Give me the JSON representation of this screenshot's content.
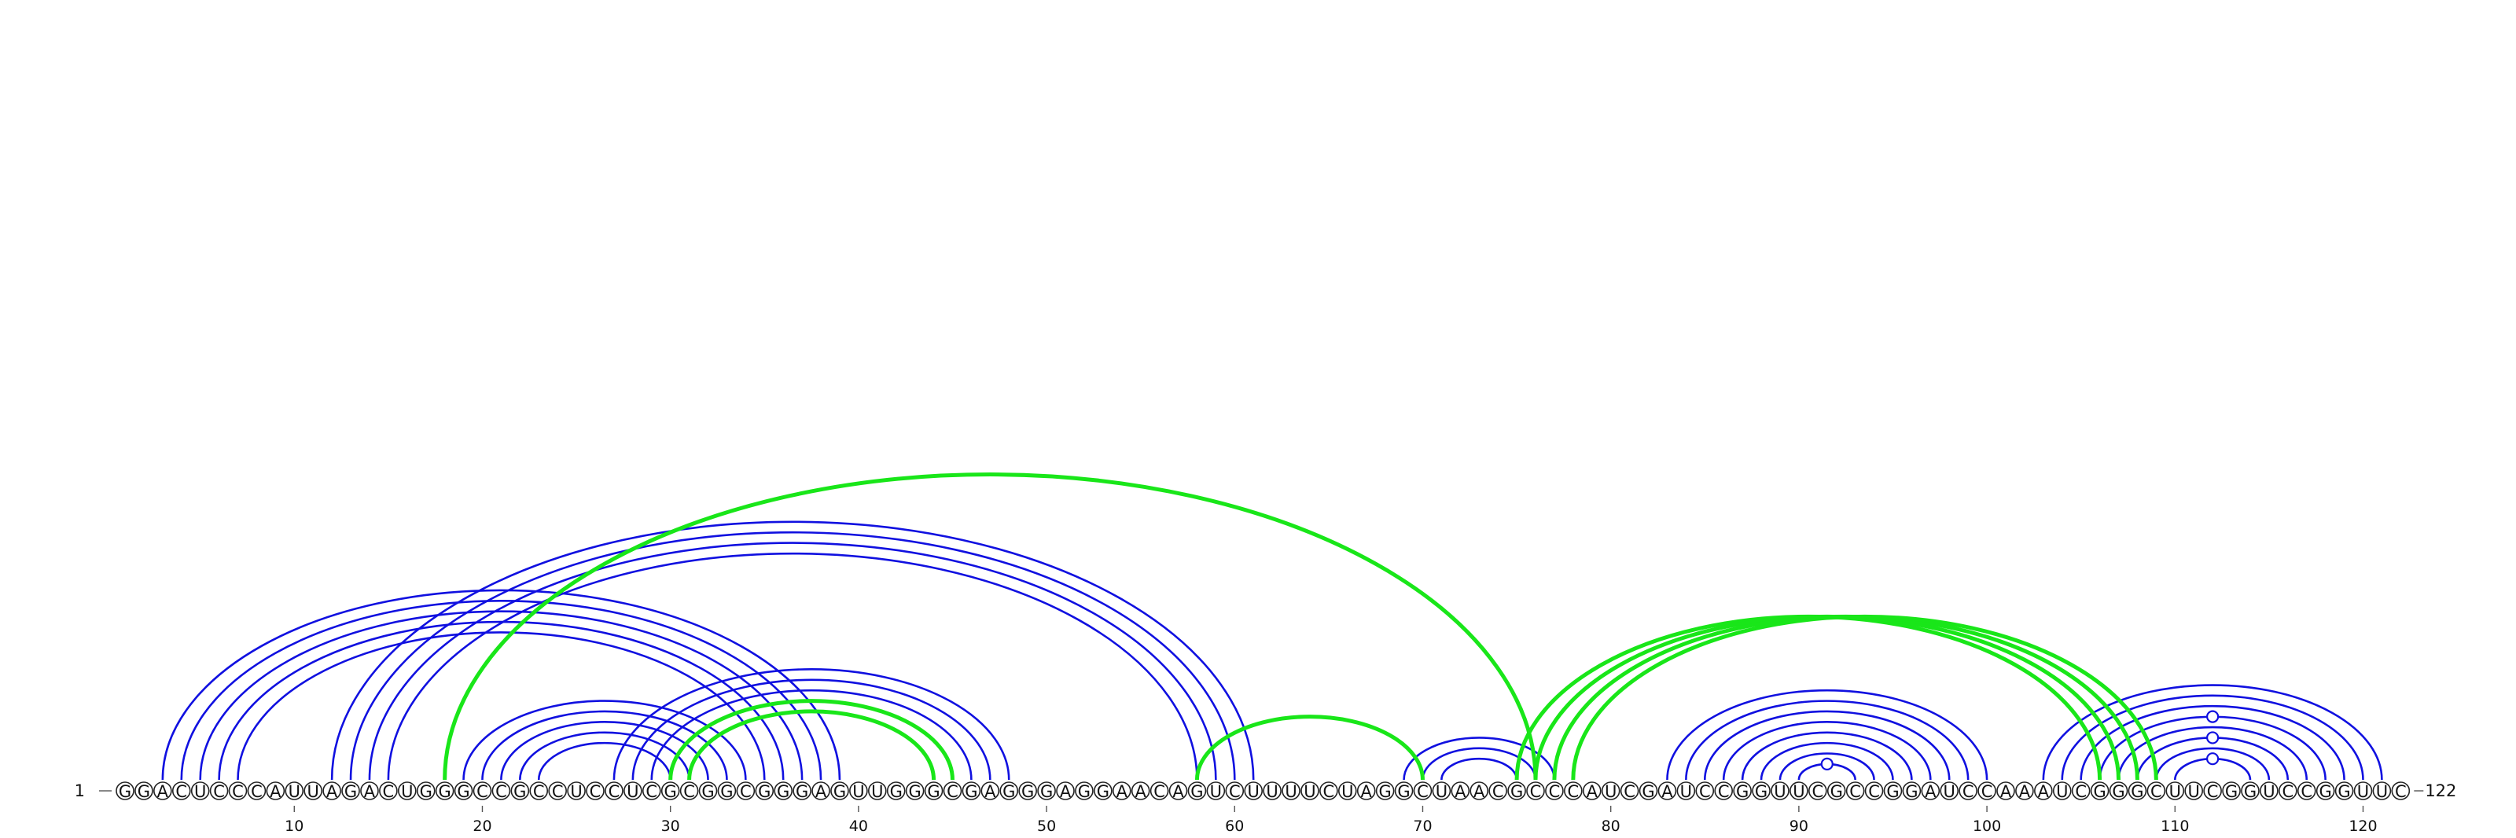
{
  "sequence": {
    "letters": "GGACUCCCAUUAGACUGGGCCGCCUCCUCGCGGCGGGAGUUGGGCGAGGGAGGAACAGUCUUUUCUAGGCUAACGCCCAUCGAUCCGGUUCGCCGGAUCCAAAUCGGGCUUCGGUCCGGUUC",
    "start_label": "1",
    "end_label": "122",
    "length": 122
  },
  "axis": {
    "ticks": [
      "10",
      "20",
      "30",
      "40",
      "50",
      "60",
      "70",
      "80",
      "90",
      "100",
      "110",
      "120"
    ]
  },
  "colors": {
    "primary_arcs": "#1010e0",
    "alternative_arcs": "#19e619",
    "nucleotide_outline": "#222222"
  },
  "arcs": {
    "primary": [
      [
        3,
        39
      ],
      [
        4,
        38
      ],
      [
        5,
        37
      ],
      [
        6,
        36
      ],
      [
        7,
        35
      ],
      [
        12,
        61
      ],
      [
        13,
        60
      ],
      [
        14,
        59
      ],
      [
        15,
        58
      ],
      [
        19,
        34
      ],
      [
        20,
        33
      ],
      [
        21,
        32
      ],
      [
        22,
        31
      ],
      [
        23,
        30
      ],
      [
        27,
        48
      ],
      [
        28,
        47
      ],
      [
        29,
        46
      ],
      [
        30,
        45
      ],
      [
        31,
        44
      ],
      [
        69,
        77
      ],
      [
        70,
        76
      ],
      [
        71,
        75
      ],
      [
        83,
        100
      ],
      [
        84,
        99
      ],
      [
        85,
        98
      ],
      [
        86,
        97
      ],
      [
        87,
        96
      ],
      [
        88,
        95
      ],
      [
        89,
        94
      ],
      [
        90,
        93
      ],
      [
        103,
        121
      ],
      [
        104,
        120
      ],
      [
        105,
        119
      ],
      [
        106,
        118
      ],
      [
        107,
        117
      ],
      [
        108,
        116
      ],
      [
        109,
        115
      ],
      [
        110,
        114
      ]
    ],
    "alternative": [
      [
        18,
        76
      ],
      [
        30,
        45
      ],
      [
        31,
        44
      ],
      [
        58,
        70
      ],
      [
        75,
        106
      ],
      [
        76,
        107
      ],
      [
        77,
        108
      ],
      [
        78,
        109
      ]
    ],
    "markers": [
      111,
      111,
      111,
      91
    ]
  }
}
